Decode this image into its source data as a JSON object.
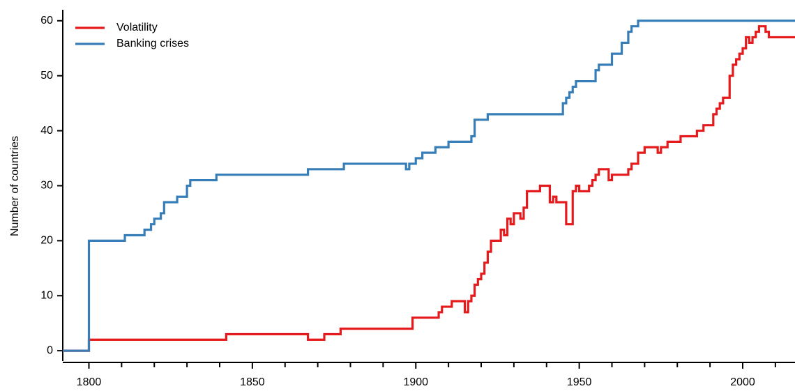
{
  "chart_data": {
    "type": "step",
    "y_label": "Number of countries",
    "xlim": [
      1792,
      2016
    ],
    "ylim": [
      -1.5,
      62
    ],
    "xticks": [
      1800,
      1850,
      1900,
      1950,
      2000
    ],
    "xminor_ticks": [
      1810,
      1820,
      1830,
      1840,
      1860,
      1870,
      1880,
      1890,
      1910,
      1920,
      1930,
      1940,
      1960,
      1970,
      1980,
      1990,
      2010
    ],
    "yticks": [
      0,
      10,
      20,
      30,
      40,
      50,
      60
    ],
    "legend": "top-left",
    "series": [
      {
        "name": "Volatility",
        "color": "#e41a1c",
        "x": [
          1792,
          1800,
          1842,
          1867,
          1872,
          1877,
          1899,
          1907,
          1908,
          1911,
          1915,
          1916,
          1917,
          1918,
          1919,
          1920,
          1921,
          1922,
          1923,
          1926,
          1927,
          1928,
          1929,
          1930,
          1932,
          1933,
          1934,
          1938,
          1941,
          1942,
          1943,
          1946,
          1948,
          1949,
          1950,
          1953,
          1954,
          1955,
          1956,
          1959,
          1960,
          1965,
          1966,
          1968,
          1970,
          1974,
          1975,
          1977,
          1981,
          1986,
          1988,
          1991,
          1992,
          1993,
          1994,
          1996,
          1997,
          1998,
          1999,
          2000,
          2001,
          2002,
          2003,
          2004,
          2005,
          2007,
          2008,
          2016
        ],
        "values": [
          0,
          2,
          3,
          2,
          3,
          4,
          6,
          7,
          8,
          9,
          7,
          9,
          10,
          12,
          13,
          14,
          16,
          18,
          20,
          22,
          21,
          24,
          23,
          25,
          24,
          26,
          29,
          30,
          27,
          28,
          27,
          23,
          29,
          30,
          29,
          30,
          31,
          32,
          33,
          31,
          32,
          33,
          34,
          36,
          37,
          36,
          37,
          38,
          39,
          40,
          41,
          43,
          44,
          45,
          46,
          50,
          52,
          53,
          54,
          55,
          57,
          56,
          57,
          58,
          59,
          58,
          57,
          57
        ]
      },
      {
        "name": "Banking crises",
        "color": "#377eb8",
        "x": [
          1792,
          1800,
          1811,
          1817,
          1819,
          1820,
          1822,
          1823,
          1827,
          1830,
          1831,
          1839,
          1867,
          1878,
          1897,
          1898,
          1900,
          1902,
          1906,
          1910,
          1917,
          1918,
          1922,
          1945,
          1946,
          1947,
          1948,
          1949,
          1955,
          1956,
          1960,
          1963,
          1965,
          1966,
          1968,
          2016
        ],
        "values": [
          0,
          20,
          21,
          22,
          23,
          24,
          25,
          27,
          28,
          30,
          31,
          32,
          33,
          34,
          33,
          34,
          35,
          36,
          37,
          38,
          39,
          42,
          43,
          45,
          46,
          47,
          48,
          49,
          51,
          52,
          54,
          56,
          58,
          59,
          60,
          60
        ]
      }
    ]
  }
}
